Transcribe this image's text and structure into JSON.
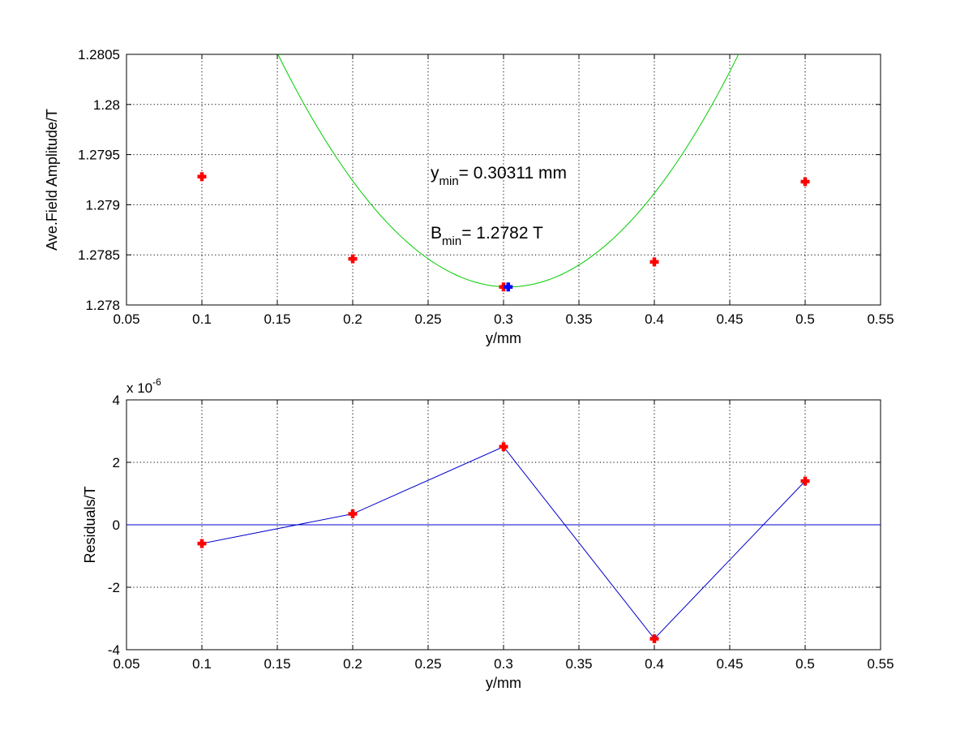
{
  "chart_data": [
    {
      "type": "scatter",
      "xlabel": "y/mm",
      "ylabel": "Ave.Field Amplitude/T",
      "xlim": [
        0.05,
        0.55
      ],
      "ylim": [
        1.278,
        1.2805
      ],
      "xticks": [
        0.05,
        0.1,
        0.15,
        0.2,
        0.25,
        0.3,
        0.35,
        0.4,
        0.45,
        0.5,
        0.55
      ],
      "xtick_labels": [
        "0.05",
        "0.1",
        "0.15",
        "0.2",
        "0.25",
        "0.3",
        "0.35",
        "0.4",
        "0.45",
        "0.5",
        "0.55"
      ],
      "yticks": [
        1.278,
        1.2785,
        1.279,
        1.2795,
        1.28,
        1.2805
      ],
      "ytick_labels": [
        "1.278",
        "1.2785",
        "1.279",
        "1.2795",
        "1.28",
        "1.2805"
      ],
      "grid": true,
      "points": {
        "x": [
          0.1,
          0.2,
          0.3,
          0.4,
          0.5
        ],
        "y": [
          1.27928,
          1.27846,
          1.27818,
          1.27843,
          1.27923
        ],
        "color": "#ff0000"
      },
      "minimum_point": {
        "x": 0.30311,
        "y": 1.27818,
        "color": "#0000ff"
      },
      "fit_curve": {
        "color": "#00cc00",
        "x_range": [
          0.05,
          0.545
        ],
        "coefficients": {
          "a": 0.0995,
          "x0": 0.30311,
          "c": 1.27818
        }
      },
      "annotations": [
        {
          "main": "y",
          "sub": "min",
          "rest": "= 0.30311 mm"
        },
        {
          "main": "B",
          "sub": "min",
          "rest": "= 1.2782 T"
        }
      ]
    },
    {
      "type": "line",
      "xlabel": "y/mm",
      "ylabel": "Residuals/T",
      "xlim": [
        0.05,
        0.55
      ],
      "ylim": [
        -4,
        4
      ],
      "scale_base": "x 10",
      "scale_exp": "-6",
      "xticks": [
        0.05,
        0.1,
        0.15,
        0.2,
        0.25,
        0.3,
        0.35,
        0.4,
        0.45,
        0.5,
        0.55
      ],
      "xtick_labels": [
        "0.05",
        "0.1",
        "0.15",
        "0.2",
        "0.25",
        "0.3",
        "0.35",
        "0.4",
        "0.45",
        "0.5",
        "0.55"
      ],
      "yticks": [
        -4,
        -2,
        0,
        2,
        4
      ],
      "ytick_labels": [
        "-4",
        "-2",
        "0",
        "2",
        "4"
      ],
      "grid": true,
      "series": [
        {
          "x": [
            0.1,
            0.2,
            0.3,
            0.4,
            0.5
          ],
          "values": [
            -0.6,
            0.35,
            2.5,
            -3.65,
            1.4
          ],
          "line_color": "#0000cc",
          "marker_color": "#ff0000"
        }
      ],
      "zero_line": {
        "y": 0,
        "color": "#0000cc"
      }
    }
  ]
}
